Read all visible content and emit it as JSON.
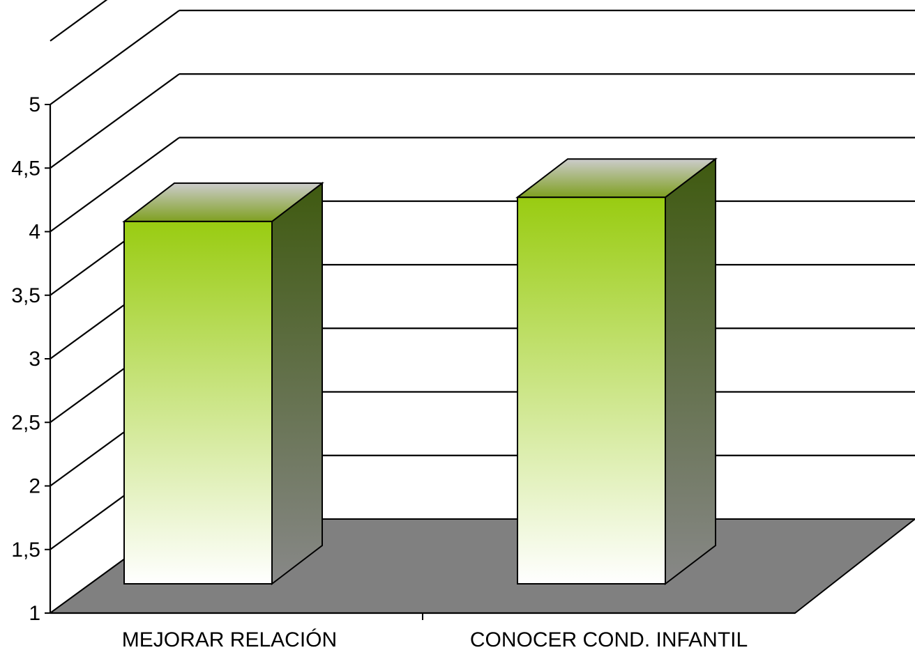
{
  "chart_data": {
    "type": "bar",
    "title": "",
    "xlabel": "",
    "ylabel": "",
    "categories": [
      "MEJORAR RELACIÓN",
      "CONOCER COND. INFANTIL"
    ],
    "series": [
      {
        "values": [
          4.08,
          4.27
        ]
      }
    ],
    "ylim": [
      1,
      5
    ],
    "yticks": [
      "1",
      "1,5",
      "2",
      "2,5",
      "3",
      "3,5",
      "4",
      "4,5",
      "5"
    ],
    "grid": true,
    "legend": "none",
    "projection": "3d",
    "colors": {
      "bar_top": "#99cc11",
      "bar_bottom": "#ffffff",
      "bar_side_top": "#3f5a10",
      "bar_side_bottom": "#888888",
      "bar_cap_front": "#7fa020",
      "bar_cap_back": "#cccccc",
      "floor": "#808080",
      "gridline": "#000000"
    }
  }
}
